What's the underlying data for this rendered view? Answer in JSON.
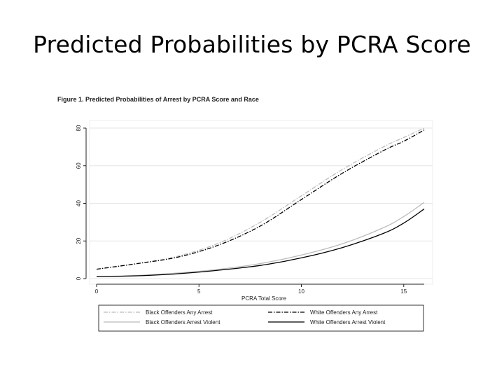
{
  "slide": {
    "title": "Predicted Probabilities by PCRA Score"
  },
  "chart_data": {
    "type": "line",
    "title": "Figure 1.  Predicted Probabilities of Arrest by PCRA Score and Race",
    "xlabel": "PCRA Total Score",
    "ylabel": "",
    "xlim": [
      0,
      16
    ],
    "ylim": [
      0,
      80
    ],
    "x_ticks": [
      0,
      5,
      10,
      15
    ],
    "y_ticks": [
      0,
      20,
      40,
      60,
      80
    ],
    "grid": "horizontal",
    "legend_position": "bottom",
    "x": [
      0,
      2,
      4,
      6,
      8,
      10,
      12,
      14,
      15,
      16
    ],
    "series": [
      {
        "name": "Black Offenders Any Arrest",
        "color": "#bbbbbb",
        "style": "dashdot",
        "values": [
          5,
          8,
          12,
          19,
          30,
          44,
          58,
          70,
          75,
          80
        ]
      },
      {
        "name": "White Offenders Any Arrest",
        "color": "#000000",
        "style": "dashdot",
        "values": [
          5,
          8,
          11.5,
          18,
          28,
          42,
          56,
          68,
          73,
          79
        ]
      },
      {
        "name": "Black Offenders Arrest Violent",
        "color": "#bbbbbb",
        "style": "solid",
        "values": [
          1,
          1.7,
          3,
          5,
          8,
          12.5,
          18.5,
          27,
          33,
          40.5
        ]
      },
      {
        "name": "White Offenders Arrest Violent",
        "color": "#000000",
        "style": "solid",
        "values": [
          1,
          1.5,
          2.6,
          4.5,
          7,
          11,
          16.5,
          24,
          29.5,
          37
        ]
      }
    ]
  }
}
